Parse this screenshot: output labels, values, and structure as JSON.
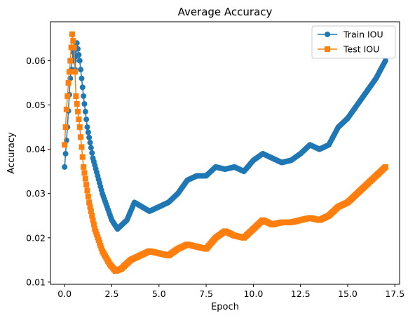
{
  "chart_data": {
    "type": "line",
    "title": "Average Accuracy",
    "xlabel": "Epoch",
    "ylabel": "Accuracy",
    "xlim": [
      -0.75,
      17.75
    ],
    "ylim": [
      0.0095,
      0.0688
    ],
    "xticks": [
      0.0,
      2.5,
      5.0,
      7.5,
      10.0,
      12.5,
      15.0,
      17.5
    ],
    "xtick_labels": [
      "0.0",
      "2.5",
      "5.0",
      "7.5",
      "10.0",
      "12.5",
      "15.0",
      "17.5"
    ],
    "yticks": [
      0.01,
      0.02,
      0.03,
      0.04,
      0.05,
      0.06
    ],
    "ytick_labels": [
      "0.01",
      "0.02",
      "0.03",
      "0.04",
      "0.05",
      "0.06"
    ],
    "legend": {
      "placement": "top-right"
    },
    "grid": false,
    "series": [
      {
        "name": "Train IOU",
        "color": "#1f77b4",
        "marker": "circle",
        "keypoints": [
          [
            0.0,
            0.036
          ],
          [
            0.15,
            0.045
          ],
          [
            0.3,
            0.056
          ],
          [
            0.45,
            0.062
          ],
          [
            0.55,
            0.058
          ],
          [
            0.65,
            0.064
          ],
          [
            0.8,
            0.06
          ],
          [
            1.0,
            0.052
          ],
          [
            1.2,
            0.045
          ],
          [
            1.5,
            0.038
          ],
          [
            2.0,
            0.03
          ],
          [
            2.5,
            0.024
          ],
          [
            2.8,
            0.022
          ],
          [
            3.3,
            0.024
          ],
          [
            3.7,
            0.028
          ],
          [
            4.5,
            0.026
          ],
          [
            5.0,
            0.027
          ],
          [
            5.5,
            0.028
          ],
          [
            6.0,
            0.03
          ],
          [
            6.5,
            0.033
          ],
          [
            7.0,
            0.034
          ],
          [
            7.5,
            0.034
          ],
          [
            8.0,
            0.036
          ],
          [
            8.5,
            0.0355
          ],
          [
            9.0,
            0.036
          ],
          [
            9.5,
            0.035
          ],
          [
            10.0,
            0.0375
          ],
          [
            10.5,
            0.039
          ],
          [
            11.0,
            0.038
          ],
          [
            11.5,
            0.037
          ],
          [
            12.0,
            0.0375
          ],
          [
            12.5,
            0.039
          ],
          [
            13.0,
            0.041
          ],
          [
            13.5,
            0.04
          ],
          [
            14.0,
            0.041
          ],
          [
            14.5,
            0.045
          ],
          [
            15.0,
            0.047
          ],
          [
            15.5,
            0.05
          ],
          [
            16.0,
            0.053
          ],
          [
            16.5,
            0.056
          ],
          [
            17.0,
            0.06
          ]
        ]
      },
      {
        "name": "Test IOU",
        "color": "#ff7f0e",
        "marker": "square",
        "keypoints": [
          [
            0.0,
            0.041
          ],
          [
            0.1,
            0.049
          ],
          [
            0.2,
            0.055
          ],
          [
            0.3,
            0.06
          ],
          [
            0.4,
            0.066
          ],
          [
            0.5,
            0.063
          ],
          [
            0.6,
            0.052
          ],
          [
            0.8,
            0.045
          ],
          [
            1.0,
            0.036
          ],
          [
            1.3,
            0.028
          ],
          [
            1.6,
            0.022
          ],
          [
            2.0,
            0.017
          ],
          [
            2.4,
            0.014
          ],
          [
            2.7,
            0.0125
          ],
          [
            3.0,
            0.013
          ],
          [
            3.5,
            0.015
          ],
          [
            4.0,
            0.016
          ],
          [
            4.5,
            0.017
          ],
          [
            5.0,
            0.0165
          ],
          [
            5.5,
            0.016
          ],
          [
            6.0,
            0.0175
          ],
          [
            6.5,
            0.0185
          ],
          [
            7.0,
            0.018
          ],
          [
            7.5,
            0.0175
          ],
          [
            8.0,
            0.02
          ],
          [
            8.5,
            0.0215
          ],
          [
            9.0,
            0.0205
          ],
          [
            9.5,
            0.02
          ],
          [
            10.0,
            0.022
          ],
          [
            10.5,
            0.024
          ],
          [
            11.0,
            0.023
          ],
          [
            11.5,
            0.0235
          ],
          [
            12.0,
            0.0235
          ],
          [
            12.5,
            0.024
          ],
          [
            13.0,
            0.0245
          ],
          [
            13.5,
            0.024
          ],
          [
            14.0,
            0.025
          ],
          [
            14.5,
            0.027
          ],
          [
            15.0,
            0.028
          ],
          [
            15.5,
            0.03
          ],
          [
            16.0,
            0.032
          ],
          [
            16.5,
            0.034
          ],
          [
            17.0,
            0.036
          ]
        ]
      }
    ]
  }
}
